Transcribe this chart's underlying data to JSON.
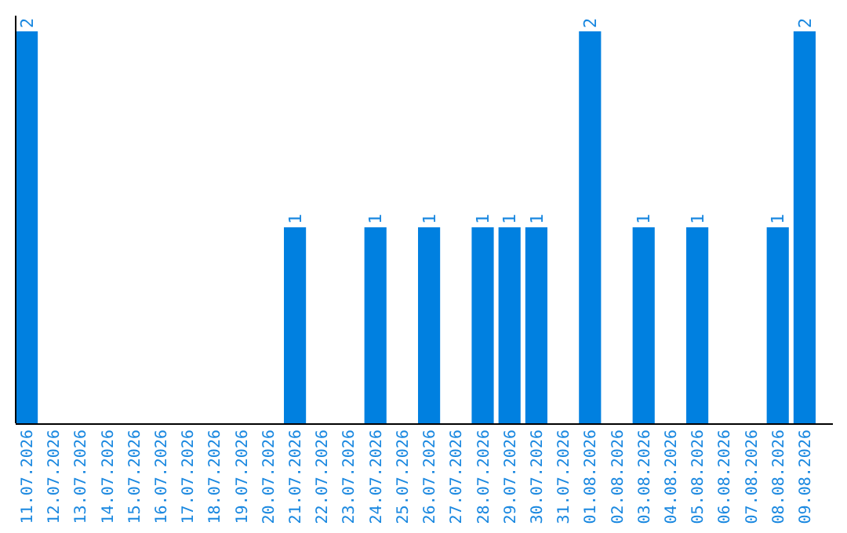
{
  "chart_data": {
    "type": "bar",
    "categories": [
      "11.07.2026",
      "12.07.2026",
      "13.07.2026",
      "14.07.2026",
      "15.07.2026",
      "16.07.2026",
      "17.07.2026",
      "18.07.2026",
      "19.07.2026",
      "20.07.2026",
      "21.07.2026",
      "22.07.2026",
      "23.07.2026",
      "24.07.2026",
      "25.07.2026",
      "26.07.2026",
      "27.07.2026",
      "28.07.2026",
      "29.07.2026",
      "30.07.2026",
      "31.07.2026",
      "01.08.2026",
      "02.08.2026",
      "03.08.2026",
      "04.08.2026",
      "05.08.2026",
      "06.08.2026",
      "07.08.2026",
      "08.08.2026",
      "09.08.2026"
    ],
    "values": [
      2,
      0,
      0,
      0,
      0,
      0,
      0,
      0,
      0,
      0,
      1,
      0,
      0,
      1,
      0,
      1,
      0,
      1,
      1,
      1,
      0,
      2,
      0,
      1,
      0,
      1,
      0,
      0,
      1,
      2
    ],
    "value_labels": [
      "2",
      null,
      null,
      null,
      null,
      null,
      null,
      null,
      null,
      null,
      "1",
      null,
      null,
      "1",
      null,
      "1",
      null,
      "1",
      "1",
      "1",
      null,
      "2",
      null,
      "1",
      null,
      "1",
      null,
      null,
      "1",
      "2"
    ],
    "color": "#0080e0"
  }
}
